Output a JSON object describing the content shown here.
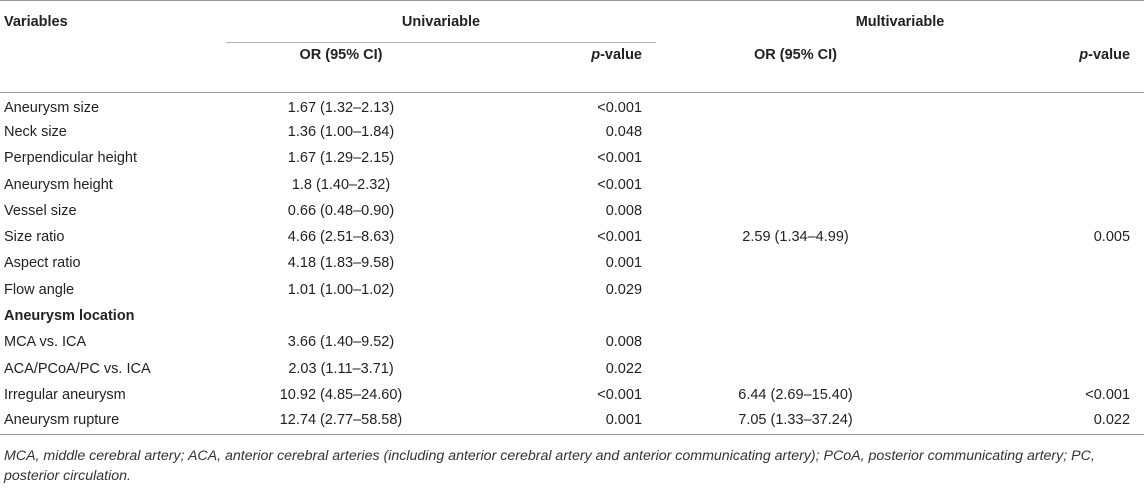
{
  "table": {
    "headers": {
      "variables": "Variables",
      "univariable": "Univariable",
      "multivariable": "Multivariable",
      "or_ci": "OR (95% CI)",
      "p_italic": "p",
      "p_suffix": "-value"
    },
    "rows": [
      {
        "variable": "Aneurysm size",
        "uni_or": "1.67 (1.32–2.13)",
        "uni_p": "<0.001",
        "multi_or": "",
        "multi_p": ""
      },
      {
        "variable": "Neck size",
        "uni_or": "1.36 (1.00–1.84)",
        "uni_p": "0.048",
        "multi_or": "",
        "multi_p": ""
      },
      {
        "variable": "Perpendicular height",
        "uni_or": "1.67 (1.29–2.15)",
        "uni_p": "<0.001",
        "multi_or": "",
        "multi_p": ""
      },
      {
        "variable": "Aneurysm height",
        "uni_or": "1.8 (1.40–2.32)",
        "uni_p": "<0.001",
        "multi_or": "",
        "multi_p": ""
      },
      {
        "variable": "Vessel size",
        "uni_or": "0.66 (0.48–0.90)",
        "uni_p": "0.008",
        "multi_or": "",
        "multi_p": ""
      },
      {
        "variable": "Size ratio",
        "uni_or": "4.66 (2.51–8.63)",
        "uni_p": "<0.001",
        "multi_or": "2.59 (1.34–4.99)",
        "multi_p": "0.005"
      },
      {
        "variable": "Aspect ratio",
        "uni_or": "4.18 (1.83–9.58)",
        "uni_p": "0.001",
        "multi_or": "",
        "multi_p": ""
      },
      {
        "variable": "Flow angle",
        "uni_or": "1.01 (1.00–1.02)",
        "uni_p": "0.029",
        "multi_or": "",
        "multi_p": ""
      },
      {
        "variable": "Aneurysm location",
        "uni_or": "",
        "uni_p": "",
        "multi_or": "",
        "multi_p": ""
      },
      {
        "variable": "MCA vs. ICA",
        "uni_or": "3.66 (1.40–9.52)",
        "uni_p": "0.008",
        "multi_or": "",
        "multi_p": ""
      },
      {
        "variable": "ACA/PCoA/PC vs. ICA",
        "uni_or": "2.03 (1.11–3.71)",
        "uni_p": "0.022",
        "multi_or": "",
        "multi_p": ""
      },
      {
        "variable": "Irregular aneurysm",
        "uni_or": "10.92 (4.85–24.60)",
        "uni_p": "<0.001",
        "multi_or": "6.44 (2.69–15.40)",
        "multi_p": "<0.001"
      },
      {
        "variable": "Aneurysm rupture",
        "uni_or": "12.74 (2.77–58.58)",
        "uni_p": "0.001",
        "multi_or": "7.05 (1.33–37.24)",
        "multi_p": "0.022"
      }
    ]
  },
  "footnote": "MCA, middle cerebral artery; ACA, anterior cerebral arteries (including anterior cerebral artery and anterior communicating artery); PCoA, posterior communicating artery; PC, posterior circulation."
}
